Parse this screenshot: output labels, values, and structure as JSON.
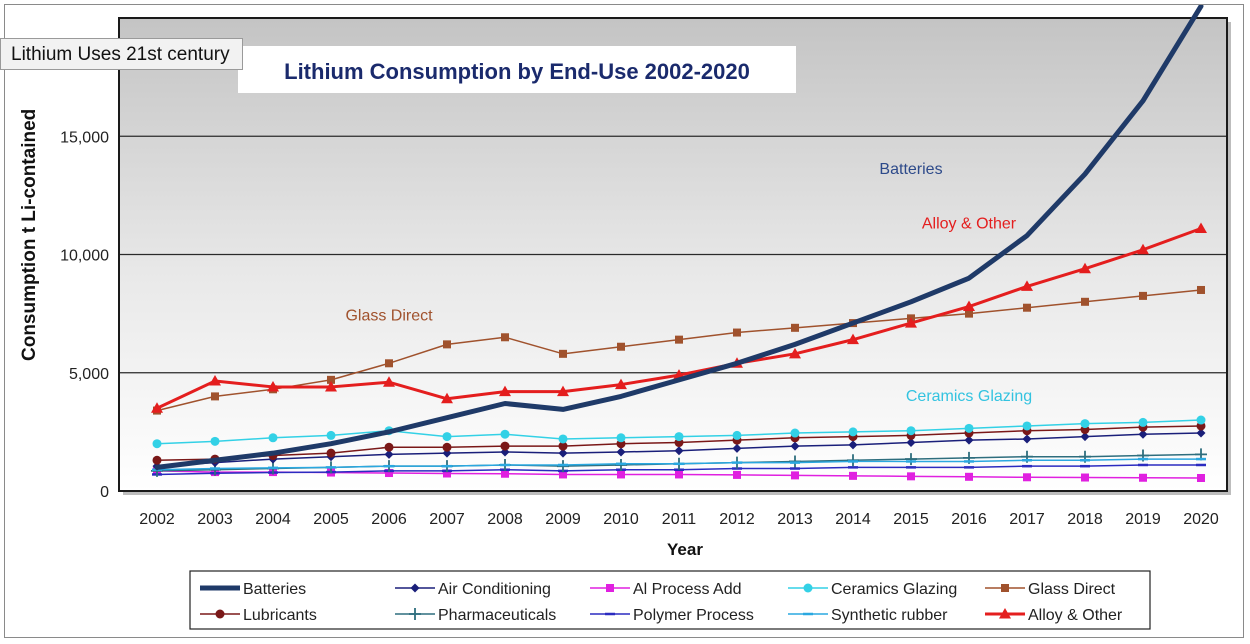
{
  "tooltip": "Lithium Uses 21st century",
  "chart_data": {
    "type": "line",
    "title": "Lithium Consumption by End-Use 2002-2020",
    "xlabel": "Year",
    "ylabel": "Consumption t Li-contained",
    "ylim": [
      0,
      20000
    ],
    "yticks": [
      0,
      5000,
      10000,
      15000
    ],
    "ytick_labels": [
      "0",
      "5,000",
      "10,000",
      "15,000"
    ],
    "grid": true,
    "legend_position": "bottom",
    "x": [
      "2002",
      "2003",
      "2004",
      "2005",
      "2006",
      "2007",
      "2008",
      "2009",
      "2010",
      "2011",
      "2012",
      "2013",
      "2014",
      "2015",
      "2016",
      "2017",
      "2018",
      "2019",
      "2020"
    ],
    "series": [
      {
        "name": "Batteries",
        "color": "#1f3a68",
        "marker": "none",
        "width": 5,
        "values": [
          1000,
          1300,
          1600,
          2000,
          2500,
          3100,
          3700,
          3450,
          4000,
          4700,
          5400,
          6200,
          7100,
          8000,
          9000,
          10800,
          13400,
          16500,
          20500
        ]
      },
      {
        "name": "Air Conditioning",
        "color": "#1a1f7a",
        "marker": "diamond",
        "width": 1.5,
        "values": [
          1050,
          1200,
          1350,
          1450,
          1550,
          1600,
          1650,
          1600,
          1650,
          1700,
          1800,
          1900,
          1950,
          2050,
          2150,
          2200,
          2300,
          2400,
          2450
        ]
      },
      {
        "name": "Al Process Add",
        "color": "#e020e0",
        "marker": "square",
        "width": 1.5,
        "values": [
          850,
          800,
          800,
          780,
          760,
          740,
          730,
          700,
          700,
          700,
          680,
          660,
          640,
          620,
          600,
          580,
          570,
          560,
          550
        ]
      },
      {
        "name": "Ceramics Glazing",
        "color": "#33d1e6",
        "marker": "circle",
        "width": 1.5,
        "values": [
          2000,
          2100,
          2250,
          2350,
          2550,
          2300,
          2400,
          2200,
          2250,
          2300,
          2350,
          2450,
          2500,
          2550,
          2650,
          2750,
          2850,
          2900,
          3000
        ]
      },
      {
        "name": "Glass Direct",
        "color": "#a0522d",
        "marker": "square",
        "width": 1.5,
        "values": [
          3400,
          4000,
          4300,
          4700,
          5400,
          6200,
          6500,
          5800,
          6100,
          6400,
          6700,
          6900,
          7100,
          7300,
          7500,
          7750,
          8000,
          8250,
          8500
        ]
      },
      {
        "name": "Lubricants",
        "color": "#7a1818",
        "marker": "circle",
        "width": 1.5,
        "values": [
          1300,
          1350,
          1500,
          1600,
          1850,
          1850,
          1900,
          1900,
          2000,
          2050,
          2150,
          2250,
          2300,
          2350,
          2450,
          2550,
          2600,
          2700,
          2750
        ]
      },
      {
        "name": "Pharmaceuticals",
        "color": "#2e6e7e",
        "marker": "plus",
        "width": 1.5,
        "values": [
          850,
          900,
          950,
          1000,
          1050,
          1050,
          1100,
          1050,
          1100,
          1150,
          1200,
          1250,
          1300,
          1350,
          1400,
          1450,
          1450,
          1500,
          1550
        ]
      },
      {
        "name": "Polymer Process",
        "color": "#2b2bc0",
        "marker": "dash",
        "width": 1.5,
        "values": [
          700,
          750,
          780,
          800,
          850,
          850,
          900,
          850,
          900,
          900,
          950,
          950,
          1000,
          1000,
          1000,
          1050,
          1050,
          1100,
          1100
        ]
      },
      {
        "name": "Synthetic rubber",
        "color": "#2aa8e0",
        "marker": "dash",
        "width": 1.5,
        "values": [
          900,
          950,
          980,
          1000,
          1050,
          1050,
          1100,
          1100,
          1150,
          1150,
          1200,
          1200,
          1250,
          1250,
          1250,
          1300,
          1300,
          1350,
          1350
        ]
      },
      {
        "name": "Alloy & Other",
        "color": "#e41e1e",
        "marker": "triangle",
        "width": 3,
        "values": [
          3500,
          4650,
          4400,
          4400,
          4600,
          3900,
          4200,
          4200,
          4500,
          4900,
          5400,
          5800,
          6400,
          7100,
          7800,
          8650,
          9400,
          10200,
          11100
        ]
      }
    ],
    "annotations": [
      {
        "text": "Batteries",
        "color": "#2d4a8a",
        "year": "2015",
        "value": 13400
      },
      {
        "text": "Alloy & Other",
        "color": "#e41e1e",
        "year": "2016",
        "value": 11100
      },
      {
        "text": "Glass Direct",
        "color": "#a0522d",
        "year": "2006",
        "value": 7200
      },
      {
        "text": "Ceramics Glazing",
        "color": "#33c3e0",
        "year": "2016",
        "value": 3800
      }
    ]
  }
}
